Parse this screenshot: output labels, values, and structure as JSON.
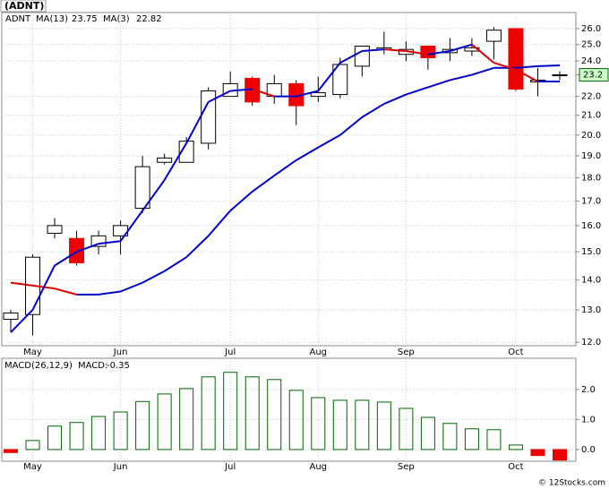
{
  "header": {
    "title": "(ADNT)"
  },
  "chart_data": [
    {
      "type": "candlestick",
      "symbol": "ADNT",
      "log_scale": true,
      "grid": true,
      "categories": [
        null,
        "May",
        null,
        null,
        null,
        "Jun",
        null,
        null,
        null,
        null,
        "Jul",
        null,
        null,
        null,
        "Aug",
        null,
        null,
        null,
        "Sep",
        null,
        null,
        null,
        null,
        "Oct",
        null,
        null
      ],
      "open": [
        12.7,
        12.85,
        15.7,
        15.5,
        15.2,
        15.6,
        16.7,
        18.7,
        18.7,
        19.6,
        22.0,
        23.0,
        22.0,
        22.7,
        22.0,
        22.1,
        23.7,
        24.7,
        24.4,
        24.9,
        24.5,
        24.6,
        25.2,
        26.0,
        22.8,
        23.2
      ],
      "high": [
        13.0,
        14.9,
        16.3,
        15.8,
        15.8,
        16.2,
        19.0,
        19.1,
        19.9,
        22.5,
        23.4,
        23.1,
        23.2,
        22.9,
        23.1,
        24.2,
        24.9,
        25.8,
        25.2,
        24.9,
        25.4,
        25.4,
        26.1,
        26.0,
        23.6,
        23.4
      ],
      "low": [
        12.3,
        12.2,
        15.5,
        14.5,
        14.9,
        14.9,
        16.5,
        18.6,
        18.7,
        19.3,
        22.0,
        21.5,
        21.6,
        20.5,
        21.7,
        21.9,
        23.1,
        24.4,
        24.0,
        23.5,
        24.0,
        24.3,
        24.1,
        22.3,
        22.0,
        22.9
      ],
      "close": [
        12.9,
        14.8,
        16.0,
        14.6,
        15.6,
        16.0,
        18.5,
        18.9,
        19.7,
        22.3,
        22.7,
        21.7,
        22.7,
        21.5,
        22.2,
        23.8,
        24.9,
        24.8,
        24.7,
        24.2,
        24.7,
        24.8,
        25.9,
        22.4,
        22.9,
        23.2
      ],
      "up_color": "#ffffff",
      "down_color": "#ee0000",
      "series": [
        {
          "name": "MA(13)",
          "color": "#0000cc",
          "down_color": "#dd0000",
          "value_label": "23.75",
          "values": [
            13.9,
            13.8,
            13.7,
            13.5,
            13.5,
            13.6,
            13.9,
            14.3,
            14.8,
            15.6,
            16.6,
            17.4,
            18.1,
            18.8,
            19.4,
            20.0,
            20.9,
            21.6,
            22.1,
            22.5,
            22.9,
            23.2,
            23.6,
            23.6,
            23.7,
            23.75
          ]
        },
        {
          "name": "MA(3)",
          "color": "#0000cc",
          "down_color": "#dd0000",
          "value_label": "22.82",
          "values": [
            12.3,
            13.0,
            14.5,
            15.0,
            15.3,
            15.4,
            16.6,
            17.9,
            19.6,
            21.7,
            22.3,
            22.4,
            22.0,
            22.0,
            22.3,
            23.9,
            24.6,
            24.7,
            24.6,
            24.4,
            24.6,
            25.0,
            23.9,
            23.5,
            22.82,
            22.82
          ]
        }
      ],
      "last_price": {
        "value": 23.2,
        "label": "23.2",
        "color": "#ccffcc"
      },
      "ylim": [
        11.9,
        27.05
      ],
      "yticks": [
        {
          "value": 12,
          "label": "12.0"
        },
        {
          "value": 13,
          "label": "13.0"
        },
        {
          "value": 14,
          "label": "14.0"
        },
        {
          "value": 15,
          "label": "15.0"
        },
        {
          "value": 16,
          "label": "16.0"
        },
        {
          "value": 17,
          "label": "17.0"
        },
        {
          "value": 18,
          "label": "18.0"
        },
        {
          "value": 19,
          "label": "19.0"
        },
        {
          "value": 20,
          "label": "20.0"
        },
        {
          "value": 21,
          "label": "21.0"
        },
        {
          "value": 22,
          "label": "22.0"
        },
        {
          "value": 23.2,
          "label": "23.2"
        },
        {
          "value": 24,
          "label": "24.0"
        },
        {
          "value": 25,
          "label": "25.0"
        },
        {
          "value": 26,
          "label": "26.0"
        }
      ]
    },
    {
      "type": "bar",
      "title": "MACD(26,12,9)",
      "value_name": "MACD:",
      "value_label": "-0.35",
      "grid": true,
      "categories": [
        null,
        "May",
        null,
        null,
        null,
        "Jun",
        null,
        null,
        null,
        null,
        "Jul",
        null,
        null,
        null,
        "Aug",
        null,
        null,
        null,
        "Sep",
        null,
        null,
        null,
        null,
        "Oct",
        null,
        null
      ],
      "values": [
        -0.1,
        0.3,
        0.78,
        0.9,
        1.1,
        1.25,
        1.6,
        1.85,
        2.03,
        2.42,
        2.57,
        2.42,
        2.33,
        1.97,
        1.73,
        1.64,
        1.64,
        1.58,
        1.37,
        1.07,
        0.87,
        0.69,
        0.66,
        0.15,
        -0.2,
        -0.35
      ],
      "color": "#006400",
      "negative_color": "#ee0000",
      "ylim": [
        -0.39,
        3.04
      ],
      "yticks": [
        {
          "value": 0,
          "label": "0.0"
        },
        {
          "value": 1,
          "label": "1.0"
        },
        {
          "value": 2,
          "label": "2.0"
        }
      ]
    }
  ],
  "footer": "© 12Stocks.com"
}
